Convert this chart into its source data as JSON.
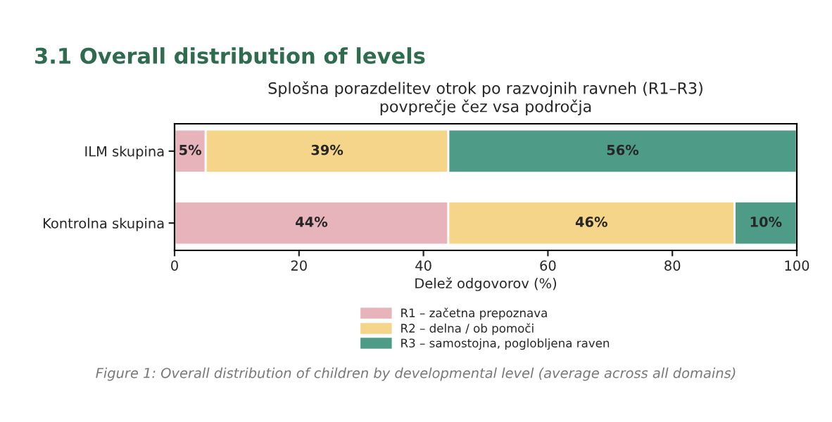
{
  "chart_data": {
    "type": "bar",
    "orientation": "horizontal",
    "stacked": true,
    "title": "3.1 Overall distribution of levels",
    "subtitle": "Splošna porazdelitev otrok po razvojnih ravneh (R1–R3)\npovprečje čez vsa področja",
    "xlabel": "Delež odgovorov (%)",
    "categories": [
      "ILM skupina",
      "Kontrolna skupina"
    ],
    "series": [
      {
        "name": "R1 – začetna prepoznava",
        "color": "#e8b4bc",
        "values": [
          5,
          44
        ],
        "value_labels": [
          "5%",
          "44%"
        ]
      },
      {
        "name": "R2 – delna / ob pomoči",
        "color": "#f5d58a",
        "values": [
          39,
          46
        ],
        "value_labels": [
          "39%",
          "46%"
        ]
      },
      {
        "name": "R3 – samostojna, poglobljena raven",
        "color": "#4e9c87",
        "values": [
          56,
          10
        ],
        "value_labels": [
          "56%",
          "10%"
        ]
      }
    ],
    "xlim": [
      0,
      100
    ],
    "xticks": [
      0,
      20,
      40,
      60,
      80,
      100
    ],
    "grid": false,
    "legend": "bottom",
    "annotations": [
      "Figure 1: Overall distribution of children by developmental level (average across all domains)"
    ]
  }
}
